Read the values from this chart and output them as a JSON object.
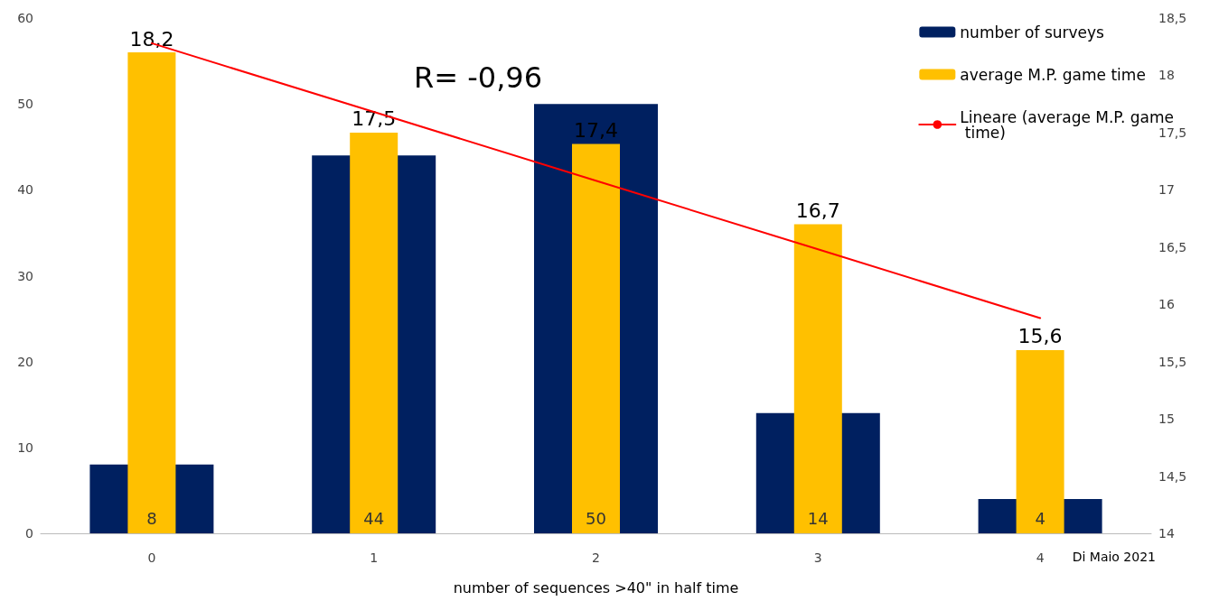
{
  "chart_data": {
    "type": "bar",
    "xlabel": "number of sequences >40\" in half time",
    "categories": [
      "0",
      "1",
      "2",
      "3",
      "4"
    ],
    "series": [
      {
        "name": "number of surveys",
        "color": "#002060",
        "values": [
          8,
          44,
          50,
          14,
          4
        ],
        "value_labels": [
          "8",
          "44",
          "50",
          "14",
          "4"
        ]
      },
      {
        "name": "average M.P. game time",
        "color": "#ffc000",
        "axis": "y2",
        "values": [
          18.2,
          17.5,
          17.4,
          16.7,
          15.6
        ],
        "value_labels": [
          "18,2",
          "17,5",
          "17,4",
          "16,7",
          "15,6"
        ]
      },
      {
        "name": "Lineare (average M.P. game time)",
        "type": "line",
        "color": "#ff0000",
        "axis": "y2",
        "marker": "none",
        "line_style": "solid",
        "values": [
          18.28,
          17.68,
          17.08,
          16.48,
          15.88
        ]
      }
    ],
    "ylim": [
      0,
      60
    ],
    "yticks": [
      0,
      10,
      20,
      30,
      40,
      50,
      60
    ],
    "y2lim": [
      14,
      18.5
    ],
    "y2ticks": [
      14,
      {
        "value": 14.5,
        "label": "14,5"
      },
      15,
      {
        "value": 15.5,
        "label": "15,5"
      },
      16,
      {
        "value": 16.5,
        "label": "16,5"
      },
      17,
      {
        "value": 17.5,
        "label": "17,5"
      },
      18,
      {
        "value": 18.5,
        "label": "18,5"
      }
    ],
    "grid": false,
    "legend": "top right",
    "annotations": [
      "R= -0,96",
      "Di Maio 2021"
    ]
  }
}
